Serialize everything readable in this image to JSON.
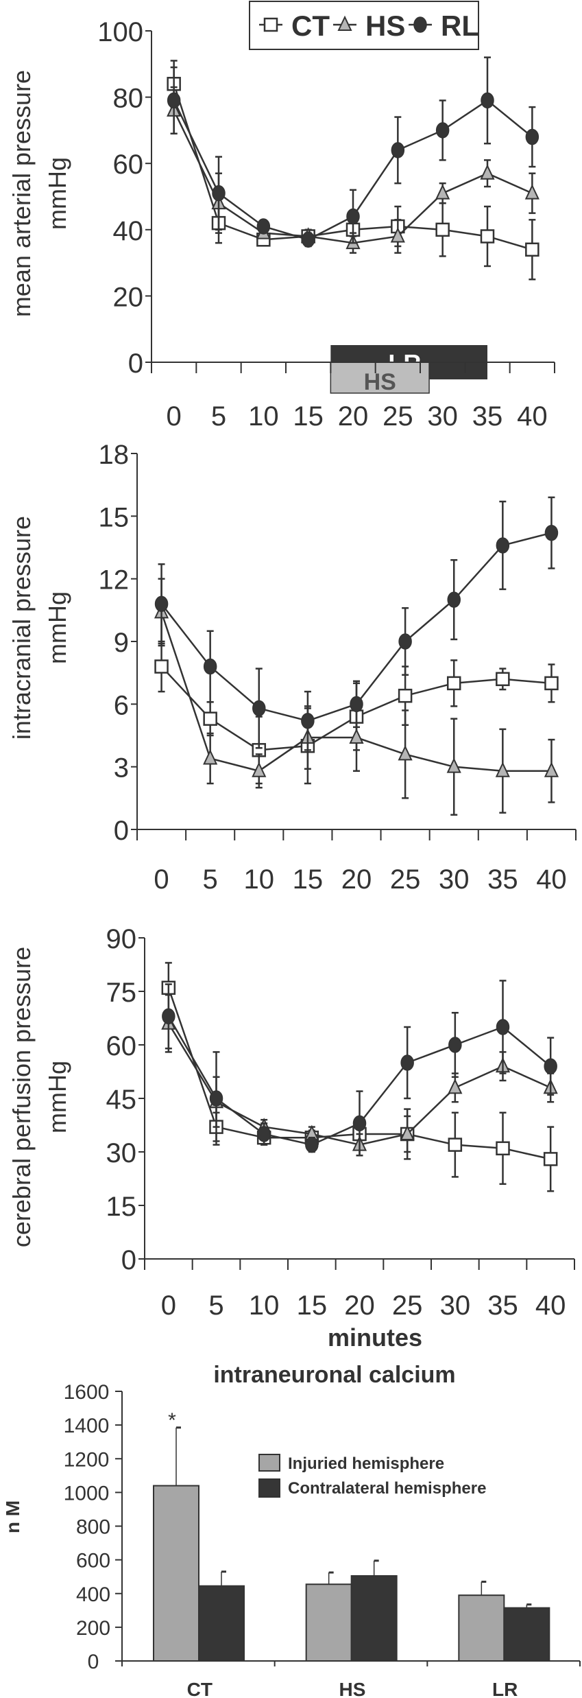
{
  "colors": {
    "ink": "#333333",
    "grey": "#a6a6a6",
    "dark": "#363636",
    "white": "#ffffff"
  },
  "chart_data": [
    {
      "type": "line",
      "ylabel": [
        "mean arterial pressure",
        "mmHg"
      ],
      "xlabel": "",
      "categories": [
        "0",
        "5",
        "10",
        "15",
        "20",
        "25",
        "30",
        "35",
        "40"
      ],
      "ylim": [
        0,
        100
      ],
      "yticks": [
        "0",
        "20",
        "40",
        "60",
        "80",
        "100"
      ],
      "legend": {
        "position": "top",
        "entries": [
          "CT",
          "HS",
          "RL"
        ]
      },
      "phase_bars": [
        {
          "label": "LR",
          "color": "#363636"
        },
        {
          "label": "HS",
          "color": "#bdbdbd"
        }
      ],
      "series": [
        {
          "name": "CT",
          "marker": "square",
          "values": [
            84,
            42,
            37,
            38,
            40,
            41,
            40,
            38,
            34
          ],
          "error": [
            7,
            6,
            1,
            2,
            2,
            6,
            8,
            9,
            9
          ]
        },
        {
          "name": "HS",
          "marker": "triangle",
          "values": [
            76,
            48,
            39,
            38,
            36,
            38,
            51,
            57,
            51
          ],
          "error": [
            7,
            9,
            1,
            2,
            3,
            5,
            3,
            4,
            6
          ]
        },
        {
          "name": "RL",
          "marker": "circle",
          "values": [
            79,
            51,
            41,
            37,
            44,
            64,
            70,
            79,
            68
          ],
          "error": [
            10,
            11,
            1,
            2,
            8,
            10,
            9,
            13,
            9
          ]
        }
      ]
    },
    {
      "type": "line",
      "ylabel": [
        "intracranial pressure",
        "mmHg"
      ],
      "xlabel": "",
      "categories": [
        "0",
        "5",
        "10",
        "15",
        "20",
        "25",
        "30",
        "35",
        "40"
      ],
      "ylim": [
        0,
        18
      ],
      "yticks": [
        "0",
        "3",
        "6",
        "9",
        "12",
        "15",
        "18"
      ],
      "series": [
        {
          "name": "CT",
          "marker": "square",
          "values": [
            7.8,
            5.3,
            3.8,
            4.0,
            5.4,
            6.4,
            7.0,
            7.2,
            7.0
          ],
          "error": [
            1.2,
            0.8,
            1.6,
            1.8,
            1.6,
            1.4,
            1.1,
            0.5,
            0.9
          ]
        },
        {
          "name": "HS",
          "marker": "triangle",
          "values": [
            10.4,
            3.4,
            2.8,
            4.4,
            4.4,
            3.6,
            3.0,
            2.8,
            2.8
          ],
          "error": [
            1.6,
            1.2,
            0.8,
            1.5,
            1.6,
            2.1,
            2.3,
            2.0,
            1.5
          ]
        },
        {
          "name": "RL",
          "marker": "circle",
          "values": [
            10.8,
            7.8,
            5.8,
            5.2,
            6.0,
            9.0,
            11.0,
            13.6,
            14.2
          ],
          "error": [
            1.9,
            1.7,
            1.9,
            1.4,
            1.1,
            1.6,
            1.9,
            2.1,
            1.7
          ]
        }
      ]
    },
    {
      "type": "line",
      "ylabel": [
        "cerebral perfusion pressure",
        "mmHg"
      ],
      "xlabel": "minutes",
      "categories": [
        "0",
        "5",
        "10",
        "15",
        "20",
        "25",
        "30",
        "35",
        "40"
      ],
      "ylim": [
        0,
        90
      ],
      "yticks": [
        "0",
        "15",
        "30",
        "45",
        "60",
        "75",
        "90"
      ],
      "series": [
        {
          "name": "CT",
          "marker": "square",
          "values": [
            76,
            37,
            34,
            34,
            35,
            35,
            32,
            31,
            28
          ],
          "error": [
            7,
            4,
            2,
            2,
            4,
            7,
            9,
            10,
            9
          ]
        },
        {
          "name": "HS",
          "marker": "triangle",
          "values": [
            66,
            44,
            37,
            35,
            32,
            35,
            48,
            54,
            48
          ],
          "error": [
            8,
            7,
            2,
            2,
            3,
            5,
            4,
            4,
            4
          ]
        },
        {
          "name": "RL",
          "marker": "circle",
          "values": [
            68,
            45,
            35,
            32,
            38,
            55,
            60,
            65,
            54
          ],
          "error": [
            9,
            13,
            3,
            2,
            9,
            10,
            9,
            13,
            8
          ]
        }
      ]
    },
    {
      "type": "bar",
      "title": "intraneuronal calcium",
      "ylabel": "n M",
      "categories": [
        "CT",
        "HS",
        "LR"
      ],
      "ylim": [
        0,
        1600
      ],
      "yticks": [
        "0",
        "200",
        "400",
        "600",
        "800",
        "1000",
        "1200",
        "1400",
        "1600"
      ],
      "legend": {
        "position": "right"
      },
      "annotations": [
        {
          "category": "CT",
          "text": "*"
        }
      ],
      "series": [
        {
          "name": "Injuried hemisphere",
          "color": "#a6a6a6",
          "values": [
            1040,
            455,
            390
          ],
          "error": [
            345,
            70,
            80
          ]
        },
        {
          "name": "Contralateral hemisphere",
          "color": "#363636",
          "values": [
            445,
            505,
            315
          ],
          "error": [
            85,
            90,
            20
          ]
        }
      ]
    }
  ]
}
